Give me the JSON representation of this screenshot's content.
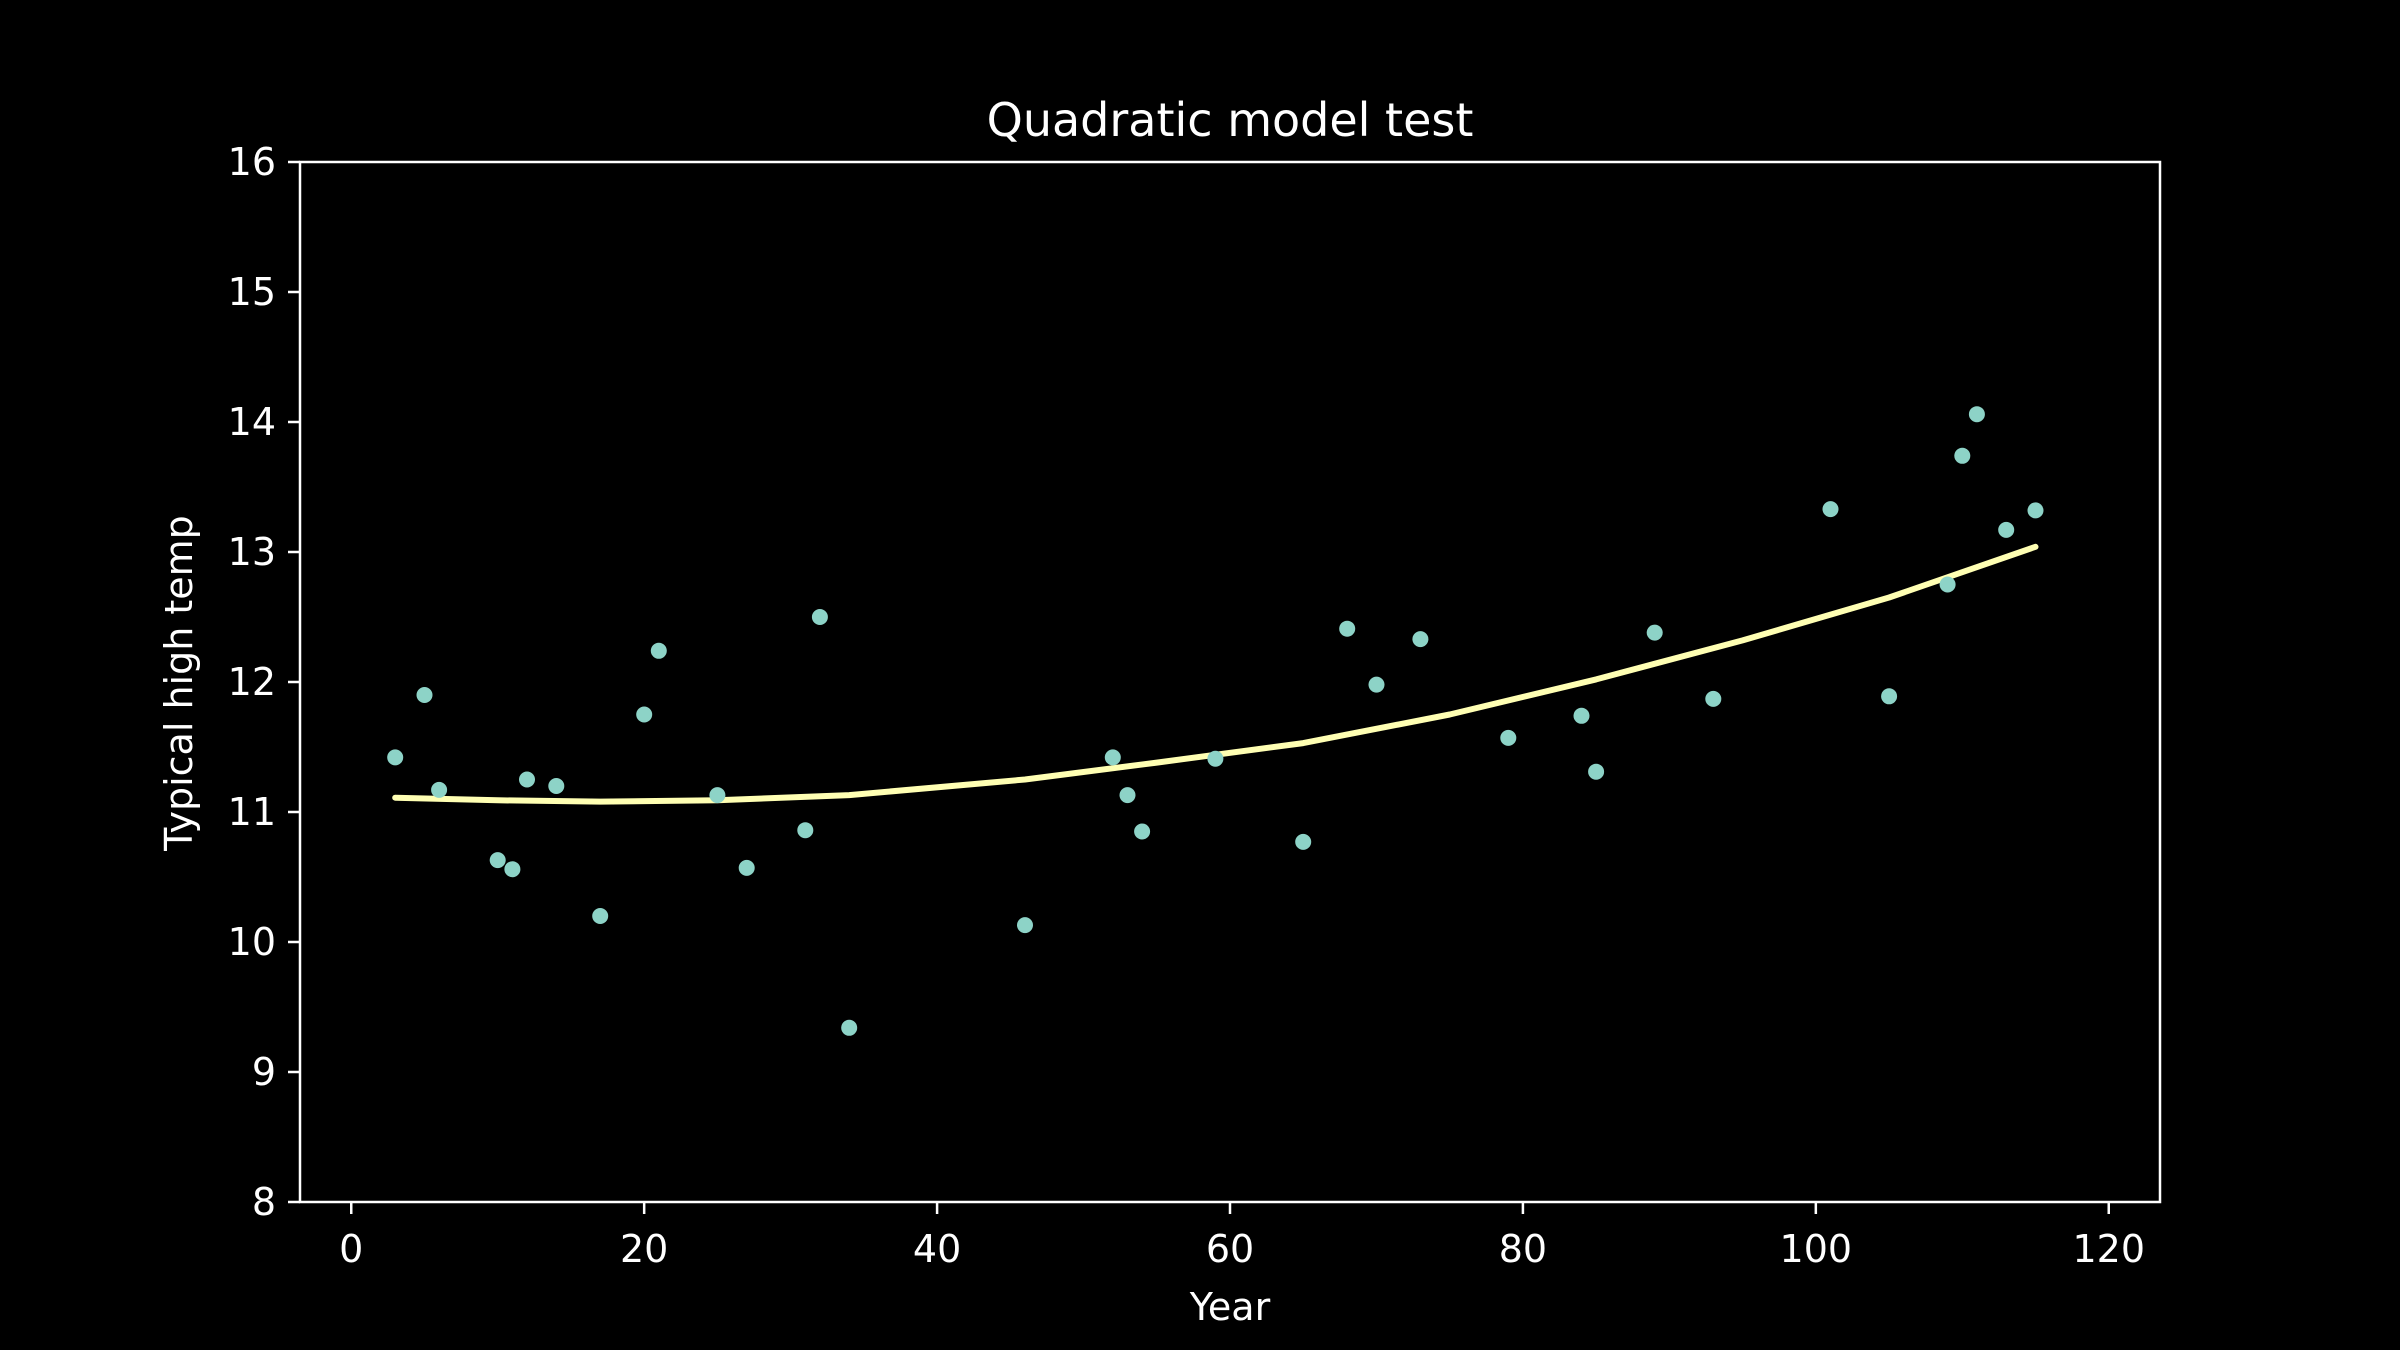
{
  "chart_data": {
    "type": "scatter",
    "title": "Quadratic model test",
    "xlabel": "Year",
    "ylabel": "Typical high temp",
    "xlim": [
      -3.5,
      123.5
    ],
    "ylim": [
      8,
      16
    ],
    "xticks": [
      "0",
      "20",
      "40",
      "60",
      "80",
      "100",
      "120"
    ],
    "yticks": [
      "8",
      "9",
      "10",
      "11",
      "12",
      "13",
      "14",
      "15",
      "16"
    ],
    "grid": false,
    "legend": "none",
    "colors": {
      "background": "#000000",
      "axes": "#ffffff",
      "points": "#8dd3c7",
      "fit_line": "#ffffb3"
    },
    "points": [
      {
        "x": 3,
        "y": 11.42
      },
      {
        "x": 5,
        "y": 11.9
      },
      {
        "x": 6,
        "y": 11.17
      },
      {
        "x": 10,
        "y": 10.63
      },
      {
        "x": 11,
        "y": 10.56
      },
      {
        "x": 12,
        "y": 11.25
      },
      {
        "x": 14,
        "y": 11.2
      },
      {
        "x": 17,
        "y": 10.2
      },
      {
        "x": 20,
        "y": 11.75
      },
      {
        "x": 21,
        "y": 12.24
      },
      {
        "x": 25,
        "y": 11.13
      },
      {
        "x": 27,
        "y": 10.57
      },
      {
        "x": 31,
        "y": 10.86
      },
      {
        "x": 32,
        "y": 12.5
      },
      {
        "x": 34,
        "y": 9.34
      },
      {
        "x": 46,
        "y": 10.13
      },
      {
        "x": 52,
        "y": 11.42
      },
      {
        "x": 53,
        "y": 11.13
      },
      {
        "x": 54,
        "y": 10.85
      },
      {
        "x": 59,
        "y": 11.41
      },
      {
        "x": 65,
        "y": 10.77
      },
      {
        "x": 68,
        "y": 12.41
      },
      {
        "x": 70,
        "y": 11.98
      },
      {
        "x": 73,
        "y": 12.33
      },
      {
        "x": 79,
        "y": 11.57
      },
      {
        "x": 84,
        "y": 11.74
      },
      {
        "x": 85,
        "y": 11.31
      },
      {
        "x": 89,
        "y": 12.38
      },
      {
        "x": 93,
        "y": 11.87
      },
      {
        "x": 101,
        "y": 13.33
      },
      {
        "x": 105,
        "y": 11.89
      },
      {
        "x": 109,
        "y": 12.75
      },
      {
        "x": 110,
        "y": 13.74
      },
      {
        "x": 111,
        "y": 14.06
      },
      {
        "x": 113,
        "y": 13.17
      },
      {
        "x": 115,
        "y": 13.32
      }
    ],
    "fit_curve": [
      {
        "x": 3,
        "y": 11.11
      },
      {
        "x": 10,
        "y": 11.09
      },
      {
        "x": 17,
        "y": 11.08
      },
      {
        "x": 25,
        "y": 11.09
      },
      {
        "x": 34,
        "y": 11.13
      },
      {
        "x": 46,
        "y": 11.25
      },
      {
        "x": 55,
        "y": 11.38
      },
      {
        "x": 65,
        "y": 11.53
      },
      {
        "x": 75,
        "y": 11.75
      },
      {
        "x": 85,
        "y": 12.02
      },
      {
        "x": 95,
        "y": 12.32
      },
      {
        "x": 105,
        "y": 12.65
      },
      {
        "x": 115,
        "y": 13.04
      }
    ]
  }
}
